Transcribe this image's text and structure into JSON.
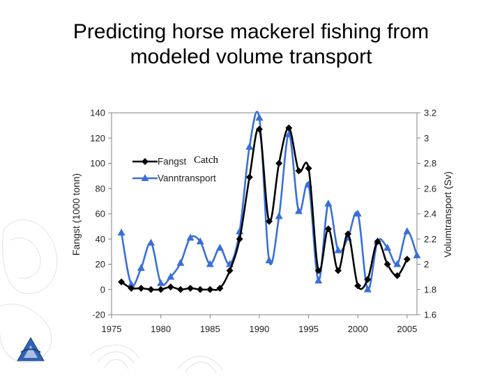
{
  "slide": {
    "title_line1": "Predicting horse mackerel fishing from",
    "title_line2": "modeled volume transport",
    "catch_note": "Catch"
  },
  "colors": {
    "fangst": "#000000",
    "vanntransport": "#3a6fd8",
    "axis": "#808080"
  },
  "chart_data": {
    "type": "line",
    "xlabel": "",
    "ylabel_left": "Fangst (1000 tonn)",
    "ylabel_right": "Volumtransport (Sv)",
    "xlim": [
      1975,
      2006
    ],
    "ylim_left": [
      -20,
      140
    ],
    "ylim_right": [
      1.6,
      3.2
    ],
    "x_ticks": [
      "1975",
      "1980",
      "1985",
      "1990",
      "1995",
      "2000",
      "2005"
    ],
    "y_left_ticks": [
      "140",
      "120",
      "100",
      "80",
      "60",
      "40",
      "20",
      "0",
      "-20"
    ],
    "y_right_ticks": [
      "3.2",
      "3",
      "2.8",
      "2.6",
      "2.4",
      "2.2",
      "2",
      "1.8",
      "1.6"
    ],
    "legend_position": "top-left",
    "series": [
      {
        "name": "Fangst",
        "axis": "left",
        "marker": "diamond",
        "x": [
          1976,
          1977,
          1978,
          1979,
          1980,
          1981,
          1982,
          1983,
          1984,
          1985,
          1986,
          1987,
          1988,
          1989,
          1990,
          1991,
          1992,
          1993,
          1994,
          1995,
          1996,
          1997,
          1998,
          1999,
          2000,
          2001,
          2002,
          2003,
          2004,
          2005
        ],
        "y": [
          6,
          1,
          1,
          0,
          0,
          2,
          0,
          1,
          0,
          0,
          1,
          15,
          40,
          89,
          127,
          54,
          100,
          128,
          94,
          96,
          15,
          48,
          15,
          44,
          3,
          8,
          38,
          20,
          11,
          24
        ]
      },
      {
        "name": "Vanntransport",
        "axis": "right",
        "marker": "triangle",
        "x": [
          1976,
          1977,
          1978,
          1979,
          1980,
          1981,
          1982,
          1983,
          1984,
          1985,
          1986,
          1987,
          1988,
          1989,
          1990,
          1991,
          1992,
          1993,
          1994,
          1995,
          1996,
          1997,
          1998,
          1999,
          2000,
          2001,
          2002,
          2003,
          2004,
          2005,
          2006
        ],
        "y": [
          2.25,
          1.84,
          1.97,
          2.17,
          1.85,
          1.9,
          2.01,
          2.21,
          2.18,
          2.0,
          2.13,
          2.0,
          2.26,
          2.93,
          3.16,
          2.03,
          2.38,
          3.03,
          2.42,
          2.63,
          1.87,
          2.48,
          2.11,
          2.21,
          2.4,
          1.8,
          2.18,
          2.13,
          2.0,
          2.26,
          2.07
        ]
      }
    ]
  }
}
